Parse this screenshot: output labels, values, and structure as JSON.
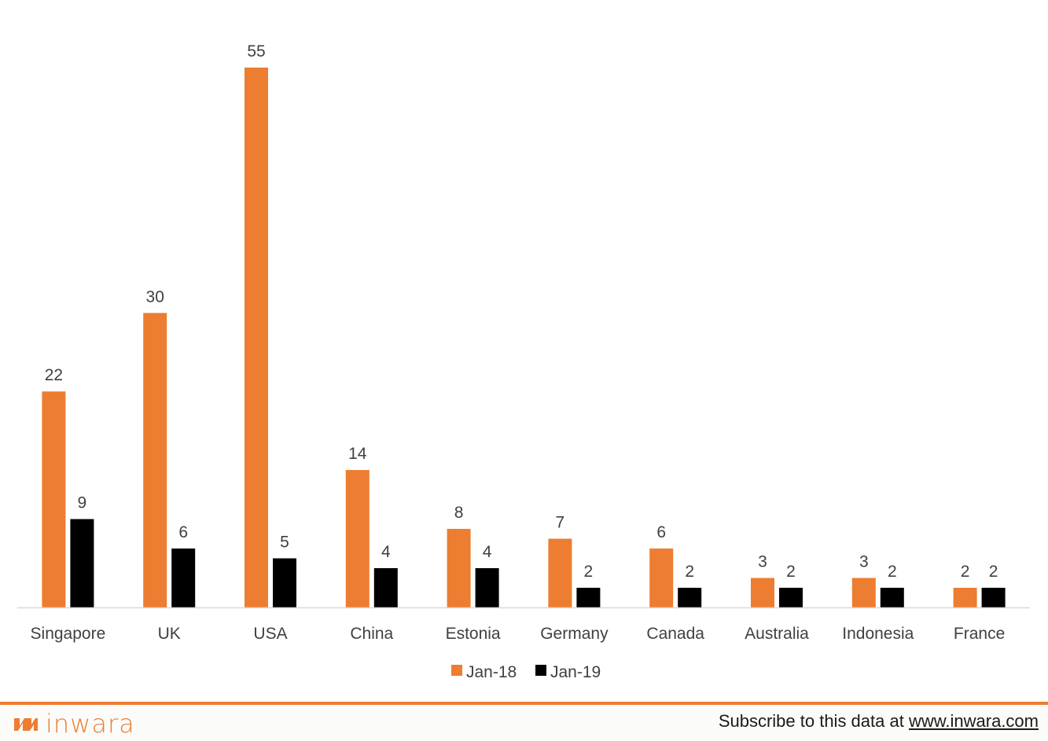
{
  "colors": {
    "series1": "#ed7d31",
    "series2": "#000000",
    "axis": "#d9d9d9",
    "text": "#404040"
  },
  "chart_data": {
    "type": "bar",
    "categories": [
      "Singapore",
      "UK",
      "USA",
      "China",
      "Estonia",
      "Germany",
      "Canada",
      "Australia",
      "Indonesia",
      "France"
    ],
    "series": [
      {
        "name": "Jan-18",
        "color": "#ed7d31",
        "values": [
          22,
          30,
          55,
          14,
          8,
          7,
          6,
          3,
          3,
          2
        ]
      },
      {
        "name": "Jan-19",
        "color": "#000000",
        "values": [
          9,
          6,
          5,
          4,
          4,
          2,
          2,
          2,
          2,
          2
        ]
      }
    ],
    "ylim": [
      0,
      55
    ],
    "grid": false,
    "legend": "bottom-center",
    "data_labels": true
  },
  "footer": {
    "brand": "inwara",
    "subscribe_text": "Subscribe to this data at ",
    "subscribe_link": "www.inwara.com"
  }
}
